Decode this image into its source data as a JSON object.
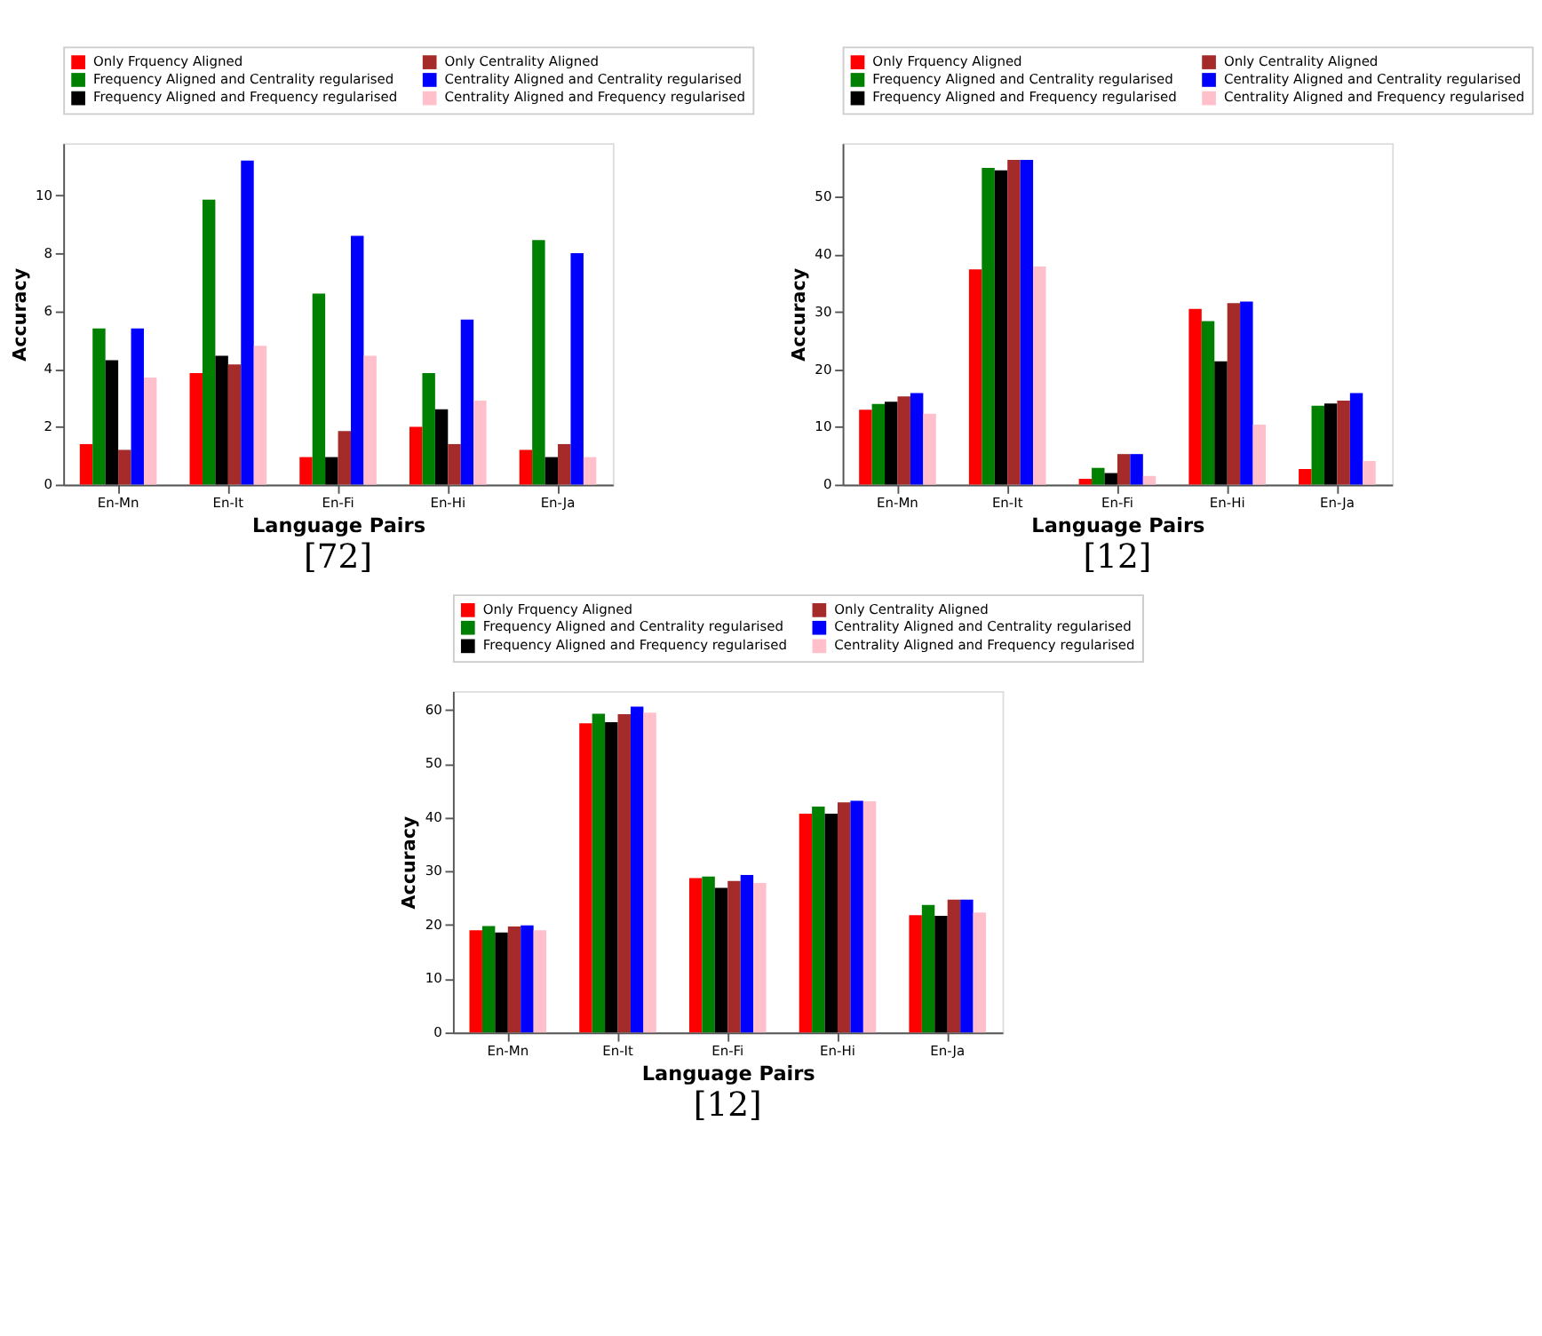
{
  "chart_data": [
    {
      "type": "bar",
      "categories": [
        "En-Mn",
        "En-It",
        "En-Fi",
        "En-Hi",
        "En-Ja"
      ],
      "xlabel": "Language Pairs",
      "ylabel": "Accuracy",
      "ylim": [
        0,
        11.8
      ],
      "yticks": [
        0,
        2,
        4,
        6,
        8,
        10
      ],
      "grid": false,
      "legend": "top",
      "annotations": [
        "[72]"
      ],
      "series": [
        {
          "name": "Only Frquency Aligned",
          "color": "#ff0000",
          "values": [
            1.4,
            3.85,
            0.95,
            2.0,
            1.2
          ]
        },
        {
          "name": "Frequency Aligned and Centrality regularised",
          "color": "#008000",
          "values": [
            5.4,
            9.85,
            6.6,
            3.85,
            8.45
          ]
        },
        {
          "name": "Frequency Aligned and Frequency regularised",
          "color": "#000000",
          "values": [
            4.3,
            4.45,
            0.95,
            2.6,
            0.95
          ]
        },
        {
          "name": "Only Centrality Aligned",
          "color": "#a52a2a",
          "values": [
            1.2,
            4.15,
            1.85,
            1.4,
            1.4
          ]
        },
        {
          "name": "Centrality Aligned and Centrality regularised",
          "color": "#0000ff",
          "values": [
            5.4,
            11.2,
            8.6,
            5.7,
            8.0
          ]
        },
        {
          "name": "Centrality Aligned and Frequency regularised",
          "color": "#ffc0cb",
          "values": [
            3.7,
            4.8,
            4.45,
            2.9,
            0.95
          ]
        }
      ]
    },
    {
      "type": "bar",
      "categories": [
        "En-Mn",
        "En-It",
        "En-Fi",
        "En-Hi",
        "En-Ja"
      ],
      "xlabel": "Language Pairs",
      "ylabel": "Accuracy",
      "ylim": [
        0,
        59.3
      ],
      "yticks": [
        0,
        10,
        20,
        30,
        40,
        50
      ],
      "grid": false,
      "legend": "top",
      "annotations": [
        "[12]"
      ],
      "series": [
        {
          "name": "Only Frquency Aligned",
          "color": "#ff0000",
          "values": [
            13,
            37.4,
            1,
            30.5,
            2.7
          ]
        },
        {
          "name": "Frequency Aligned and Centrality regularised",
          "color": "#008000",
          "values": [
            14,
            55,
            2.9,
            28.4,
            13.7
          ]
        },
        {
          "name": "Frequency Aligned and Frequency regularised",
          "color": "#000000",
          "values": [
            14.4,
            54.6,
            2,
            21.4,
            14.1
          ]
        },
        {
          "name": "Only Centrality Aligned",
          "color": "#a52a2a",
          "values": [
            15.3,
            56.4,
            5.3,
            31.5,
            14.6
          ]
        },
        {
          "name": "Centrality Aligned and Centrality regularised",
          "color": "#0000ff",
          "values": [
            15.9,
            56.4,
            5.3,
            31.8,
            15.9
          ]
        },
        {
          "name": "Centrality Aligned and Frequency regularised",
          "color": "#ffc0cb",
          "values": [
            12.3,
            37.9,
            1.5,
            10.4,
            4.1
          ]
        }
      ]
    },
    {
      "type": "bar",
      "categories": [
        "En-Mn",
        "En-It",
        "En-Fi",
        "En-Hi",
        "En-Ja"
      ],
      "xlabel": "Language Pairs",
      "ylabel": "Accuracy",
      "ylim": [
        0,
        63.5
      ],
      "yticks": [
        0,
        10,
        20,
        30,
        40,
        50,
        60
      ],
      "grid": false,
      "legend": "top",
      "annotations": [
        "[12]"
      ],
      "series": [
        {
          "name": "Only Frquency Aligned",
          "color": "#ff0000",
          "values": [
            19,
            57.5,
            28.7,
            40.7,
            21.8
          ]
        },
        {
          "name": "Frequency Aligned and Centrality regularised",
          "color": "#008000",
          "values": [
            19.8,
            59.3,
            29,
            42,
            23.7
          ]
        },
        {
          "name": "Frequency Aligned and Frequency regularised",
          "color": "#000000",
          "values": [
            18.6,
            57.7,
            26.9,
            40.7,
            21.7
          ]
        },
        {
          "name": "Only Centrality Aligned",
          "color": "#a52a2a",
          "values": [
            19.7,
            59.2,
            28.2,
            42.8,
            24.7
          ]
        },
        {
          "name": "Centrality Aligned and Centrality regularised",
          "color": "#0000ff",
          "values": [
            19.9,
            60.6,
            29.3,
            43.1,
            24.7
          ]
        },
        {
          "name": "Centrality Aligned and Frequency regularised",
          "color": "#ffc0cb",
          "values": [
            19,
            59.5,
            27.8,
            43,
            22.3
          ]
        }
      ]
    }
  ]
}
